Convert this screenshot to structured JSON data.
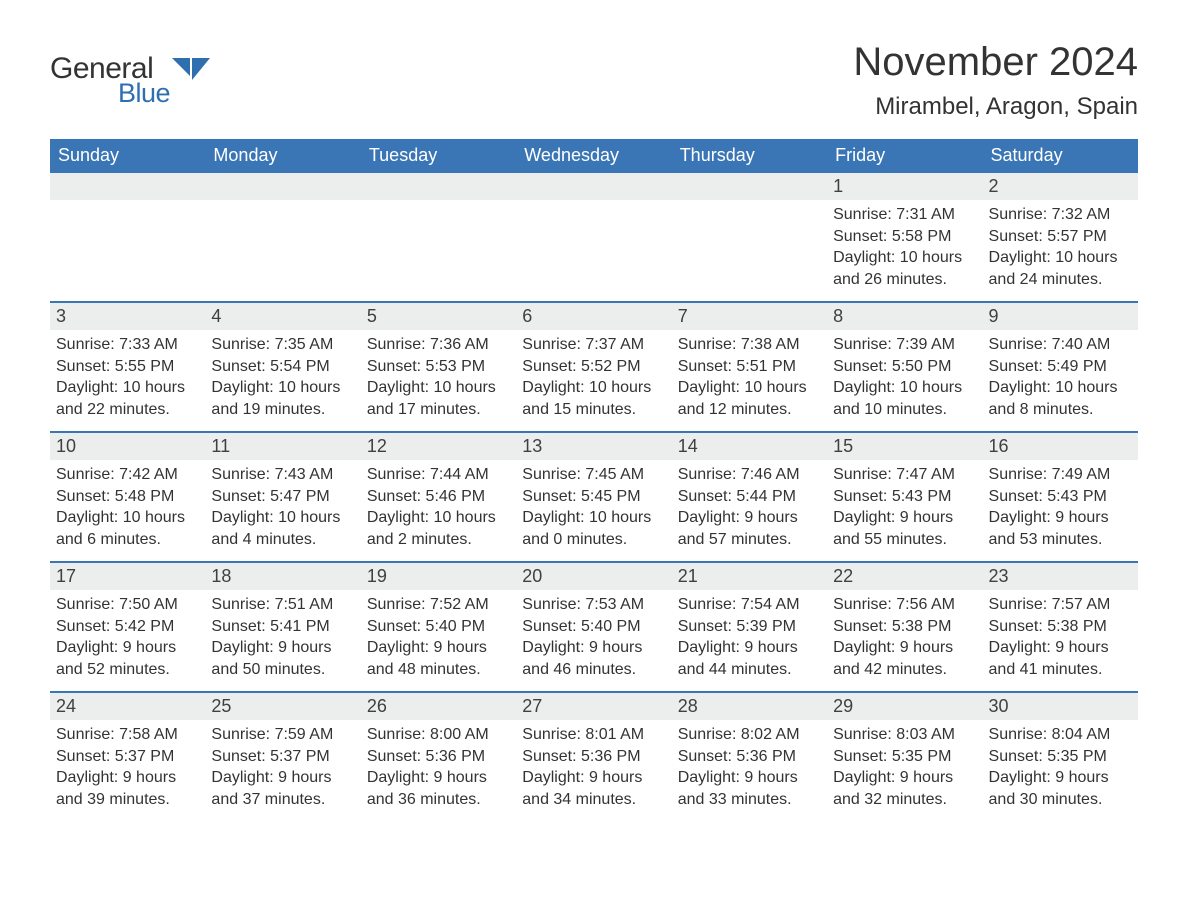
{
  "colors": {
    "header_bg": "#3a76b5",
    "header_text": "#ffffff",
    "daynum_bg": "#eceded",
    "week_border": "#3a76b5",
    "text": "#333333",
    "logo_blue": "#2f6fb0"
  },
  "logo": {
    "general": "General",
    "blue": "Blue"
  },
  "title": "November 2024",
  "subtitle": "Mirambel, Aragon, Spain",
  "days_of_week": [
    "Sunday",
    "Monday",
    "Tuesday",
    "Wednesday",
    "Thursday",
    "Friday",
    "Saturday"
  ],
  "weeks": [
    [
      null,
      null,
      null,
      null,
      null,
      {
        "n": "1",
        "sunrise": "Sunrise: 7:31 AM",
        "sunset": "Sunset: 5:58 PM",
        "daylight": "Daylight: 10 hours and 26 minutes."
      },
      {
        "n": "2",
        "sunrise": "Sunrise: 7:32 AM",
        "sunset": "Sunset: 5:57 PM",
        "daylight": "Daylight: 10 hours and 24 minutes."
      }
    ],
    [
      {
        "n": "3",
        "sunrise": "Sunrise: 7:33 AM",
        "sunset": "Sunset: 5:55 PM",
        "daylight": "Daylight: 10 hours and 22 minutes."
      },
      {
        "n": "4",
        "sunrise": "Sunrise: 7:35 AM",
        "sunset": "Sunset: 5:54 PM",
        "daylight": "Daylight: 10 hours and 19 minutes."
      },
      {
        "n": "5",
        "sunrise": "Sunrise: 7:36 AM",
        "sunset": "Sunset: 5:53 PM",
        "daylight": "Daylight: 10 hours and 17 minutes."
      },
      {
        "n": "6",
        "sunrise": "Sunrise: 7:37 AM",
        "sunset": "Sunset: 5:52 PM",
        "daylight": "Daylight: 10 hours and 15 minutes."
      },
      {
        "n": "7",
        "sunrise": "Sunrise: 7:38 AM",
        "sunset": "Sunset: 5:51 PM",
        "daylight": "Daylight: 10 hours and 12 minutes."
      },
      {
        "n": "8",
        "sunrise": "Sunrise: 7:39 AM",
        "sunset": "Sunset: 5:50 PM",
        "daylight": "Daylight: 10 hours and 10 minutes."
      },
      {
        "n": "9",
        "sunrise": "Sunrise: 7:40 AM",
        "sunset": "Sunset: 5:49 PM",
        "daylight": "Daylight: 10 hours and 8 minutes."
      }
    ],
    [
      {
        "n": "10",
        "sunrise": "Sunrise: 7:42 AM",
        "sunset": "Sunset: 5:48 PM",
        "daylight": "Daylight: 10 hours and 6 minutes."
      },
      {
        "n": "11",
        "sunrise": "Sunrise: 7:43 AM",
        "sunset": "Sunset: 5:47 PM",
        "daylight": "Daylight: 10 hours and 4 minutes."
      },
      {
        "n": "12",
        "sunrise": "Sunrise: 7:44 AM",
        "sunset": "Sunset: 5:46 PM",
        "daylight": "Daylight: 10 hours and 2 minutes."
      },
      {
        "n": "13",
        "sunrise": "Sunrise: 7:45 AM",
        "sunset": "Sunset: 5:45 PM",
        "daylight": "Daylight: 10 hours and 0 minutes."
      },
      {
        "n": "14",
        "sunrise": "Sunrise: 7:46 AM",
        "sunset": "Sunset: 5:44 PM",
        "daylight": "Daylight: 9 hours and 57 minutes."
      },
      {
        "n": "15",
        "sunrise": "Sunrise: 7:47 AM",
        "sunset": "Sunset: 5:43 PM",
        "daylight": "Daylight: 9 hours and 55 minutes."
      },
      {
        "n": "16",
        "sunrise": "Sunrise: 7:49 AM",
        "sunset": "Sunset: 5:43 PM",
        "daylight": "Daylight: 9 hours and 53 minutes."
      }
    ],
    [
      {
        "n": "17",
        "sunrise": "Sunrise: 7:50 AM",
        "sunset": "Sunset: 5:42 PM",
        "daylight": "Daylight: 9 hours and 52 minutes."
      },
      {
        "n": "18",
        "sunrise": "Sunrise: 7:51 AM",
        "sunset": "Sunset: 5:41 PM",
        "daylight": "Daylight: 9 hours and 50 minutes."
      },
      {
        "n": "19",
        "sunrise": "Sunrise: 7:52 AM",
        "sunset": "Sunset: 5:40 PM",
        "daylight": "Daylight: 9 hours and 48 minutes."
      },
      {
        "n": "20",
        "sunrise": "Sunrise: 7:53 AM",
        "sunset": "Sunset: 5:40 PM",
        "daylight": "Daylight: 9 hours and 46 minutes."
      },
      {
        "n": "21",
        "sunrise": "Sunrise: 7:54 AM",
        "sunset": "Sunset: 5:39 PM",
        "daylight": "Daylight: 9 hours and 44 minutes."
      },
      {
        "n": "22",
        "sunrise": "Sunrise: 7:56 AM",
        "sunset": "Sunset: 5:38 PM",
        "daylight": "Daylight: 9 hours and 42 minutes."
      },
      {
        "n": "23",
        "sunrise": "Sunrise: 7:57 AM",
        "sunset": "Sunset: 5:38 PM",
        "daylight": "Daylight: 9 hours and 41 minutes."
      }
    ],
    [
      {
        "n": "24",
        "sunrise": "Sunrise: 7:58 AM",
        "sunset": "Sunset: 5:37 PM",
        "daylight": "Daylight: 9 hours and 39 minutes."
      },
      {
        "n": "25",
        "sunrise": "Sunrise: 7:59 AM",
        "sunset": "Sunset: 5:37 PM",
        "daylight": "Daylight: 9 hours and 37 minutes."
      },
      {
        "n": "26",
        "sunrise": "Sunrise: 8:00 AM",
        "sunset": "Sunset: 5:36 PM",
        "daylight": "Daylight: 9 hours and 36 minutes."
      },
      {
        "n": "27",
        "sunrise": "Sunrise: 8:01 AM",
        "sunset": "Sunset: 5:36 PM",
        "daylight": "Daylight: 9 hours and 34 minutes."
      },
      {
        "n": "28",
        "sunrise": "Sunrise: 8:02 AM",
        "sunset": "Sunset: 5:36 PM",
        "daylight": "Daylight: 9 hours and 33 minutes."
      },
      {
        "n": "29",
        "sunrise": "Sunrise: 8:03 AM",
        "sunset": "Sunset: 5:35 PM",
        "daylight": "Daylight: 9 hours and 32 minutes."
      },
      {
        "n": "30",
        "sunrise": "Sunrise: 8:04 AM",
        "sunset": "Sunset: 5:35 PM",
        "daylight": "Daylight: 9 hours and 30 minutes."
      }
    ]
  ]
}
